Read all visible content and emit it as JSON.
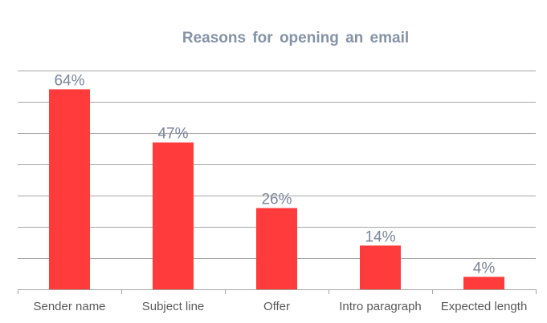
{
  "chart_data": {
    "type": "bar",
    "title": "Reasons for opening an email",
    "categories": [
      "Sender name",
      "Subject line",
      "Offer",
      "Intro paragraph",
      "Expected length"
    ],
    "values": [
      64,
      47,
      26,
      14,
      4
    ],
    "data_labels": [
      "64%",
      "47%",
      "26%",
      "14%",
      "4%"
    ],
    "xlabel": "",
    "ylabel": "",
    "ylim": [
      0,
      70
    ],
    "grid": true,
    "legend": "none",
    "bar_color": "#ff3b3b",
    "title_color": "#8493a8",
    "label_color": "#7a869a"
  }
}
